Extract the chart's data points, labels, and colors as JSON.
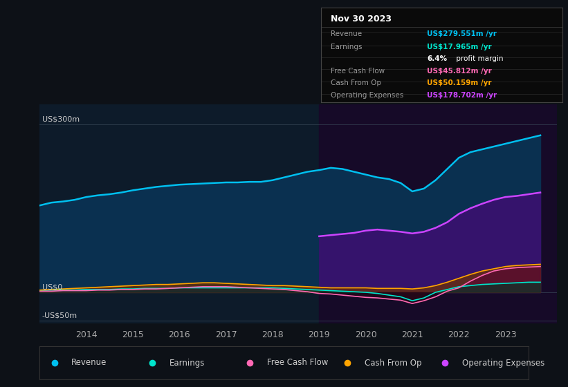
{
  "background_color": "#0d1117",
  "plot_bg_color": "#0d1b2a",
  "ylabel_300": "US$300m",
  "ylabel_0": "US$0",
  "ylabel_neg50": "-US$50m",
  "x_ticks": [
    2014,
    2015,
    2016,
    2017,
    2018,
    2019,
    2020,
    2021,
    2022,
    2023
  ],
  "years": [
    2013.0,
    2013.25,
    2013.5,
    2013.75,
    2014.0,
    2014.25,
    2014.5,
    2014.75,
    2015.0,
    2015.25,
    2015.5,
    2015.75,
    2016.0,
    2016.25,
    2016.5,
    2016.75,
    2017.0,
    2017.25,
    2017.5,
    2017.75,
    2018.0,
    2018.25,
    2018.5,
    2018.75,
    2019.0,
    2019.25,
    2019.5,
    2019.75,
    2020.0,
    2020.25,
    2020.5,
    2020.75,
    2021.0,
    2021.25,
    2021.5,
    2021.75,
    2022.0,
    2022.25,
    2022.5,
    2022.75,
    2023.0,
    2023.25,
    2023.5,
    2023.75
  ],
  "revenue": [
    155,
    160,
    162,
    165,
    170,
    173,
    175,
    178,
    182,
    185,
    188,
    190,
    192,
    193,
    194,
    195,
    196,
    196,
    197,
    197,
    200,
    205,
    210,
    215,
    218,
    222,
    220,
    215,
    210,
    205,
    202,
    195,
    180,
    185,
    200,
    220,
    240,
    250,
    255,
    260,
    265,
    270,
    275,
    280
  ],
  "earnings": [
    3,
    4,
    4,
    4,
    5,
    5,
    5,
    6,
    6,
    7,
    7,
    7,
    8,
    8,
    8,
    8,
    8,
    8,
    8,
    8,
    8,
    7,
    6,
    5,
    4,
    3,
    2,
    1,
    0,
    -2,
    -5,
    -8,
    -15,
    -10,
    0,
    5,
    10,
    12,
    14,
    15,
    16,
    17,
    18,
    18
  ],
  "free_cash_flow": [
    2,
    2,
    3,
    3,
    3,
    4,
    4,
    5,
    5,
    6,
    6,
    7,
    8,
    9,
    10,
    10,
    10,
    9,
    8,
    7,
    6,
    5,
    3,
    1,
    -2,
    -3,
    -5,
    -7,
    -9,
    -10,
    -12,
    -14,
    -20,
    -15,
    -8,
    2,
    8,
    20,
    30,
    38,
    42,
    44,
    45,
    46
  ],
  "cash_from_op": [
    4,
    5,
    6,
    7,
    8,
    9,
    10,
    11,
    12,
    13,
    14,
    14,
    15,
    16,
    17,
    17,
    16,
    15,
    14,
    13,
    12,
    12,
    11,
    10,
    9,
    8,
    8,
    8,
    8,
    7,
    7,
    7,
    6,
    8,
    12,
    18,
    25,
    32,
    38,
    42,
    46,
    48,
    49,
    50
  ],
  "op_expenses": [
    0,
    0,
    0,
    0,
    0,
    0,
    0,
    0,
    0,
    0,
    0,
    0,
    0,
    0,
    0,
    0,
    0,
    0,
    0,
    0,
    0,
    0,
    0,
    0,
    100,
    102,
    104,
    106,
    110,
    112,
    110,
    108,
    105,
    108,
    115,
    125,
    140,
    150,
    158,
    165,
    170,
    172,
    175,
    178
  ],
  "revenue_color": "#00c0f0",
  "earnings_color": "#00e5cc",
  "fcf_color": "#ff69b4",
  "cashop_color": "#ffa500",
  "opex_color": "#cc44ff",
  "revenue_fill": "#0a3050",
  "opex_fill_color": "#3a1070",
  "info_box": {
    "date": "Nov 30 2023",
    "revenue_val": "US$279.551m /yr",
    "earnings_val": "US$17.965m /yr",
    "profit_pct": "6.4%",
    "profit_label": " profit margin",
    "fcf_val": "US$45.812m /yr",
    "cashop_val": "US$50.159m /yr",
    "opex_val": "US$178.702m /yr"
  },
  "legend_items": [
    {
      "label": "Revenue",
      "color": "#00c0f0"
    },
    {
      "label": "Earnings",
      "color": "#00e5cc"
    },
    {
      "label": "Free Cash Flow",
      "color": "#ff69b4"
    },
    {
      "label": "Cash From Op",
      "color": "#ffa500"
    },
    {
      "label": "Operating Expenses",
      "color": "#cc44ff"
    }
  ],
  "ylim": [
    -55,
    335
  ],
  "xlim": [
    2013.0,
    2024.1
  ],
  "shaded_start_x": 2019.0
}
